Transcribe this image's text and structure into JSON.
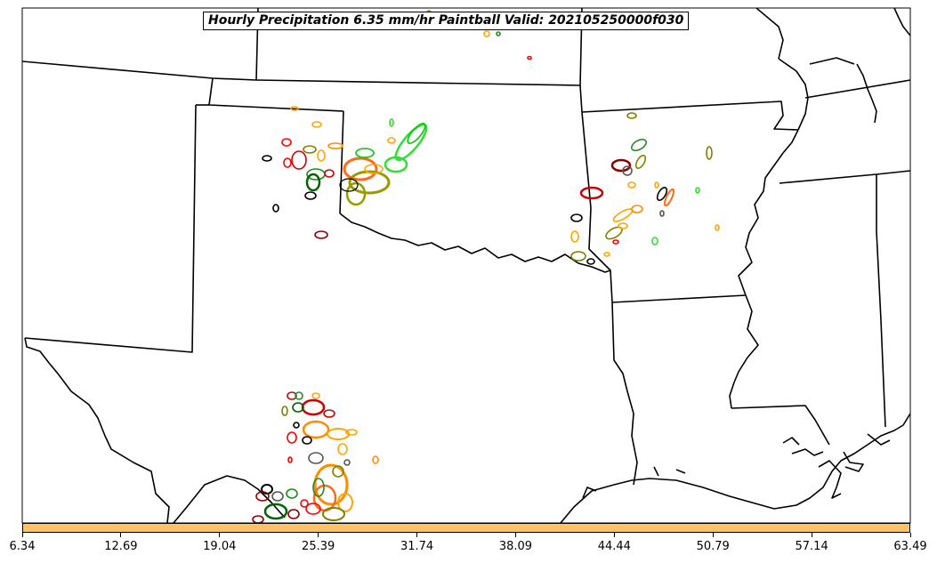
{
  "title": "Hourly Precipitation 6.35 mm/hr Paintball Valid: 202105250000f030",
  "colorbar": {
    "color": "#ffc266",
    "ticks": [
      "6.34",
      "12.69",
      "19.04",
      "25.39",
      "31.74",
      "38.09",
      "44.44",
      "50.79",
      "57.14",
      "63.49"
    ]
  },
  "member_colors": [
    "#ff0000",
    "#cc0000",
    "#8b0000",
    "#ff8c00",
    "#ffa500",
    "#ff6a1a",
    "#00cc00",
    "#33dd33",
    "#006400",
    "#228b22",
    "#808000",
    "#999900",
    "#000000",
    "#555555"
  ]
}
